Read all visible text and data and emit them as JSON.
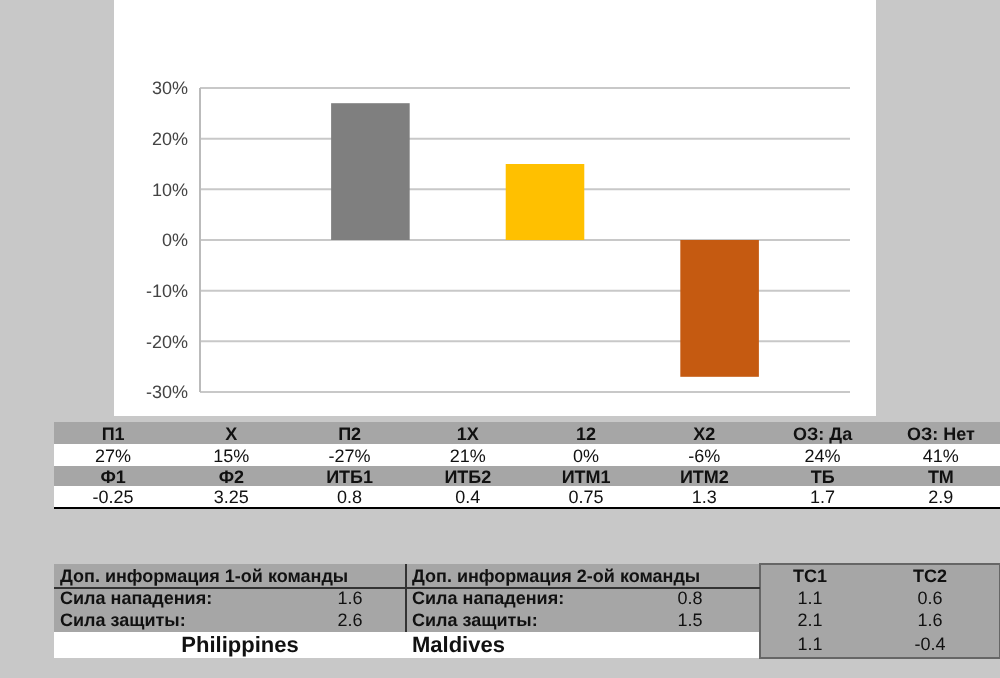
{
  "chart_data": {
    "type": "bar",
    "categories": [
      null,
      null,
      null
    ],
    "values": [
      27,
      15,
      -27
    ],
    "colors": [
      "#7f7f7f",
      "#ffc000",
      "#c55a11"
    ],
    "ylim": [
      -30,
      30
    ],
    "yticks": [
      {
        "value": -30,
        "label": "-30%"
      },
      {
        "value": -20,
        "label": "-20%"
      },
      {
        "value": -10,
        "label": "-10%"
      },
      {
        "value": 0,
        "label": "0%"
      },
      {
        "value": 10,
        "label": "10%"
      },
      {
        "value": 20,
        "label": "20%"
      },
      {
        "value": 30,
        "label": "30%"
      }
    ],
    "grid": "y",
    "annotations": [
      "П1",
      "X",
      "П2",
      "1X",
      "12",
      "X2",
      "ОЗ: Да",
      "ОЗ: Нет",
      "27%",
      "15%",
      "-27%",
      "21%",
      "0%",
      "-6%",
      "24%",
      "41%",
      "Ф1",
      "Ф2",
      "ИТБ1",
      "ИТБ2",
      "ИТМ1",
      "ИТМ2",
      "ТБ",
      "ТМ",
      "-0.25",
      "3.25",
      "0.8",
      "0.4",
      "0.75",
      "1.3",
      "1.7",
      "2.9",
      "Доп. информация 1-ой команды",
      "Сила нападения:",
      "1.6",
      "Сила защиты:",
      "2.6",
      "Philippines",
      "Доп. информация 2-ой команды",
      "Сила нападения:",
      "0.8",
      "Сила защиты:",
      "1.5",
      "Maldives",
      "ТС1",
      "ТС2",
      "1.1",
      "0.6",
      "2.1",
      "1.6",
      "1.1",
      "-0.4"
    ]
  }
}
